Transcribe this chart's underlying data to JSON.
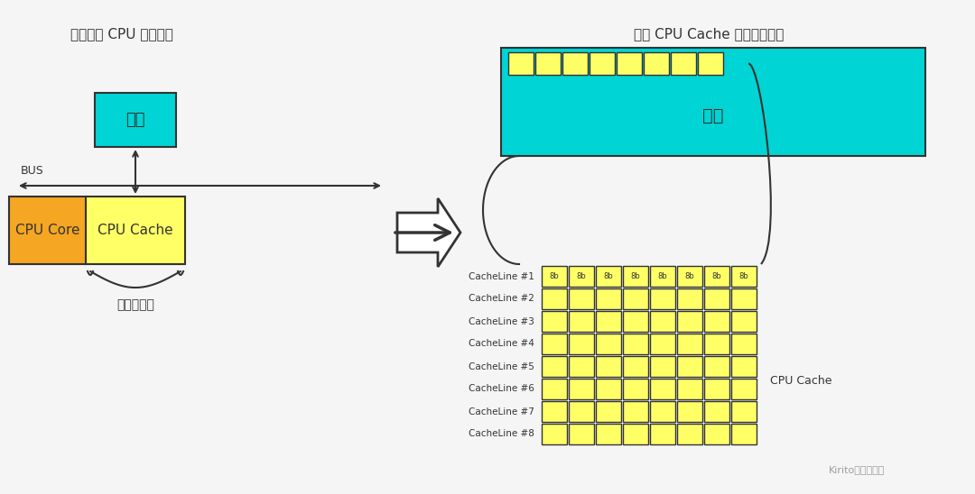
{
  "bg_color": "#f5f5f5",
  "title_left": "简化后的 CPU 缓存架构",
  "title_right": "体现 CPU Cache 和内存的关系",
  "cyan_color": "#00d4d4",
  "yellow_color": "#ffff66",
  "orange_color": "#f5a623",
  "white_color": "#ffffff",
  "dark_color": "#333333",
  "cacheline_labels": [
    "CacheLine #1",
    "CacheLine #2",
    "CacheLine #3",
    "CacheLine #4",
    "CacheLine #5",
    "CacheLine #6",
    "CacheLine #7",
    "CacheLine #8"
  ],
  "watermark": "Kirito的技术分享"
}
